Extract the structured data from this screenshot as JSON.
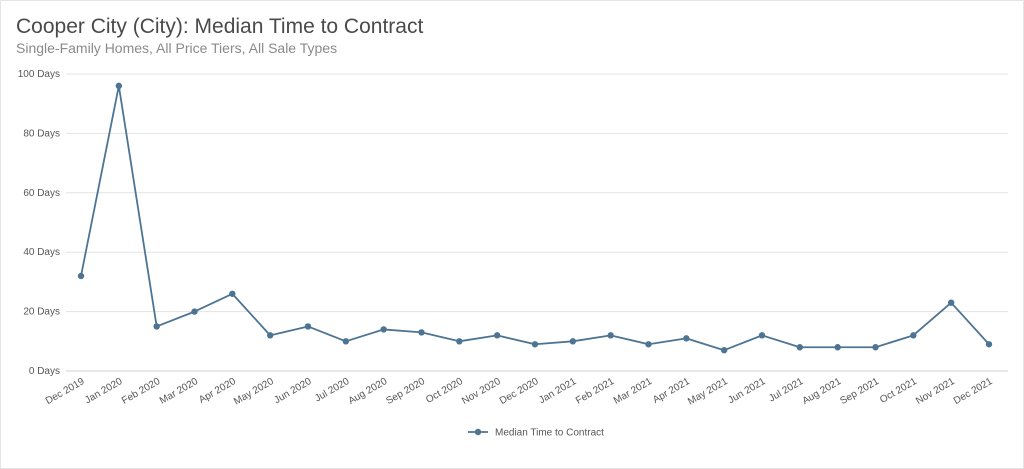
{
  "chart_data": {
    "type": "line",
    "title": "Cooper City (City): Median Time to Contract",
    "subtitle": "Single-Family Homes, All Price Tiers, All Sale Types",
    "xlabel": "",
    "ylabel": "",
    "ylim": [
      0,
      100
    ],
    "y_ticks": [
      "0 Days",
      "20 Days",
      "40 Days",
      "60 Days",
      "80 Days",
      "100 Days"
    ],
    "y_tick_values": [
      0,
      20,
      40,
      60,
      80,
      100
    ],
    "categories": [
      "Dec 2019",
      "Jan 2020",
      "Feb 2020",
      "Mar 2020",
      "Apr 2020",
      "May 2020",
      "Jun 2020",
      "Jul 2020",
      "Aug 2020",
      "Sep 2020",
      "Oct 2020",
      "Nov 2020",
      "Dec 2020",
      "Jan 2021",
      "Feb 2021",
      "Mar 2021",
      "Apr 2021",
      "May 2021",
      "Jun 2021",
      "Jul 2021",
      "Aug 2021",
      "Sep 2021",
      "Oct 2021",
      "Nov 2021",
      "Dec 2021"
    ],
    "series": [
      {
        "name": "Median Time to Contract",
        "color": "#4d7493",
        "values": [
          32,
          96,
          15,
          20,
          26,
          12,
          15,
          10,
          14,
          13,
          10,
          12,
          9,
          10,
          12,
          9,
          11,
          7,
          12,
          8,
          8,
          8,
          12,
          23,
          9
        ]
      }
    ],
    "grid": true,
    "legend_position": "bottom-center"
  }
}
